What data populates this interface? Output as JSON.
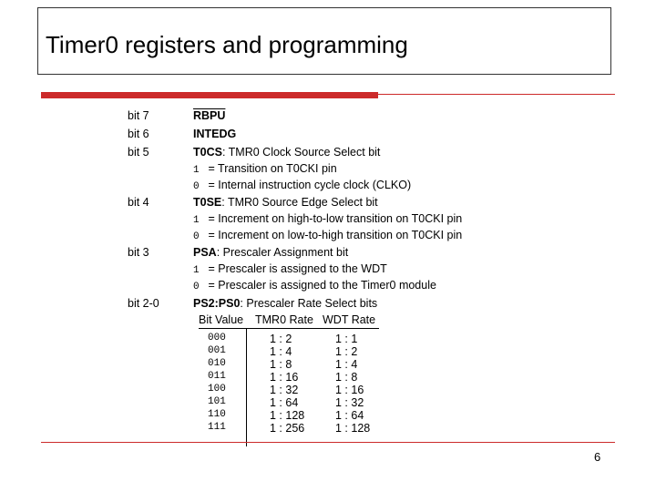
{
  "slide": {
    "title": "Timer0 registers and programming",
    "page_number": "6"
  },
  "bits": [
    {
      "bit": "bit 7",
      "name": "RBPU",
      "desc": "",
      "overline": true,
      "options": []
    },
    {
      "bit": "bit 6",
      "name": "INTEDG",
      "desc": "",
      "overline": false,
      "options": []
    },
    {
      "bit": "bit 5",
      "name": "T0CS",
      "desc": ": TMR0 Clock Source Select bit",
      "overline": false,
      "options": [
        {
          "num": "1",
          "text": " = Transition on T0CKI pin"
        },
        {
          "num": "0",
          "text": " = Internal instruction cycle clock (CLKO)"
        }
      ]
    },
    {
      "bit": "bit 4",
      "name": "T0SE",
      "desc": ": TMR0 Source Edge Select bit",
      "overline": false,
      "options": [
        {
          "num": "1",
          "text": " = Increment on high-to-low transition on T0CKI pin"
        },
        {
          "num": "0",
          "text": " = Increment on low-to-high transition on T0CKI pin"
        }
      ]
    },
    {
      "bit": "bit 3",
      "name": "PSA",
      "desc": ": Prescaler Assignment bit",
      "overline": false,
      "options": [
        {
          "num": "1",
          "text": " = Prescaler is assigned to the WDT"
        },
        {
          "num": "0",
          "text": " = Prescaler is assigned to the Timer0 module"
        }
      ]
    },
    {
      "bit": "bit 2-0",
      "name": "PS2:PS0",
      "desc": ": Prescaler Rate Select bits",
      "overline": false,
      "options": []
    }
  ],
  "prescaler_table": {
    "headers": [
      "Bit Value",
      "TMR0 Rate",
      "WDT Rate"
    ],
    "rows": [
      [
        "000",
        "1 : 2",
        "1 : 1"
      ],
      [
        "001",
        "1 : 4",
        "1 : 2"
      ],
      [
        "010",
        "1 : 8",
        "1 : 4"
      ],
      [
        "011",
        "1 : 16",
        "1 : 8"
      ],
      [
        "100",
        "1 : 32",
        "1 : 16"
      ],
      [
        "101",
        "1 : 64",
        "1 : 32"
      ],
      [
        "110",
        "1 : 128",
        "1 : 64"
      ],
      [
        "111",
        "1 : 256",
        "1 : 128"
      ]
    ]
  },
  "colors": {
    "accent": "#cc2a2a"
  }
}
